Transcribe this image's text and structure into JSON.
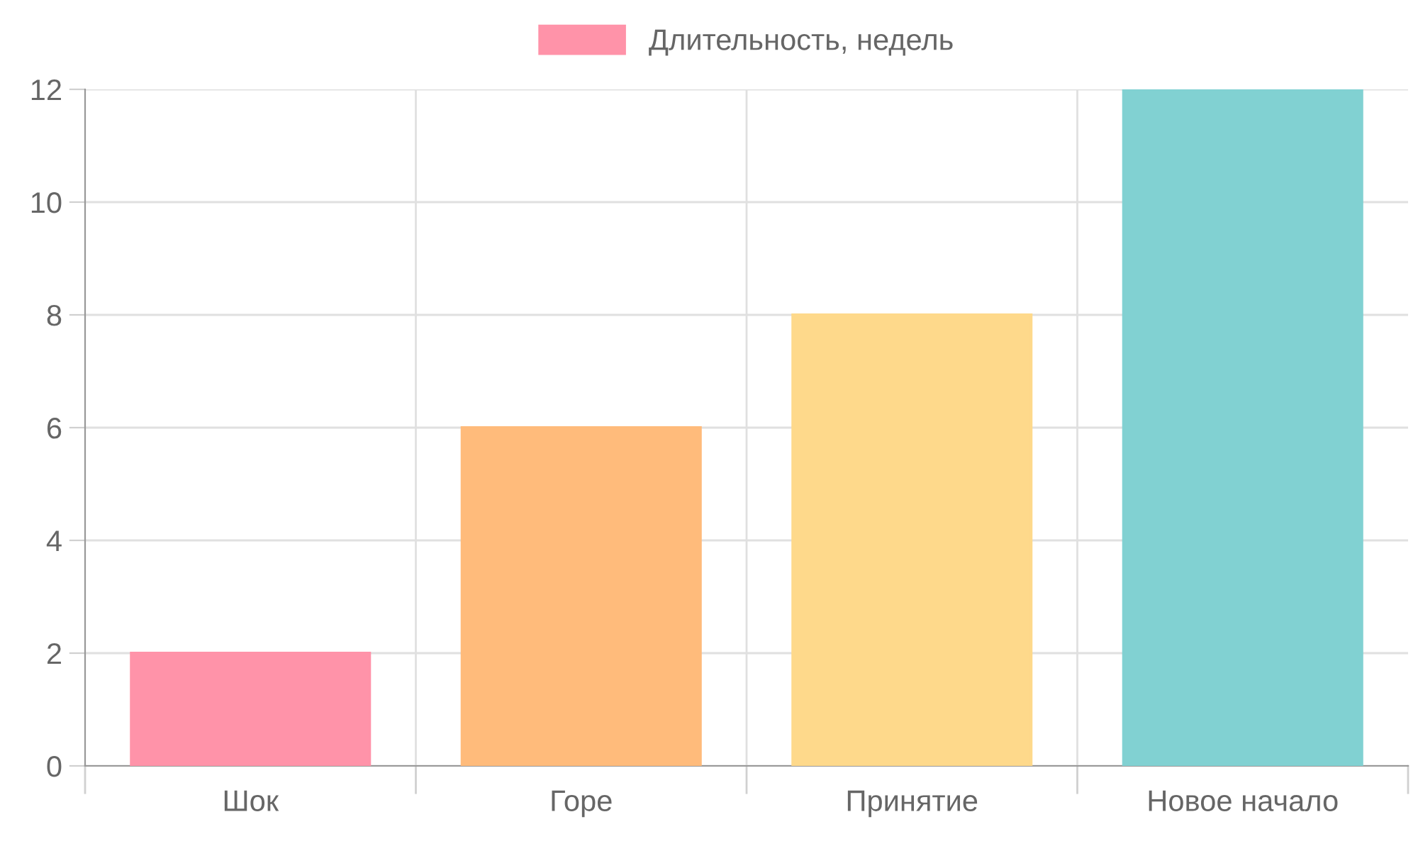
{
  "chart_data": {
    "type": "bar",
    "categories": [
      "Шок",
      "Горе",
      "Принятие",
      "Новое начало"
    ],
    "series": [
      {
        "name": "Длительность, недель",
        "colors": [
          "#ff93a9",
          "#ffbb7b",
          "#fed98b",
          "#81d1d2"
        ],
        "values": [
          2,
          6,
          8,
          12
        ]
      }
    ],
    "ylim": [
      0,
      12
    ],
    "yticks": [
      0,
      2,
      4,
      6,
      8,
      10,
      12
    ],
    "grid": true,
    "legend": "top"
  }
}
